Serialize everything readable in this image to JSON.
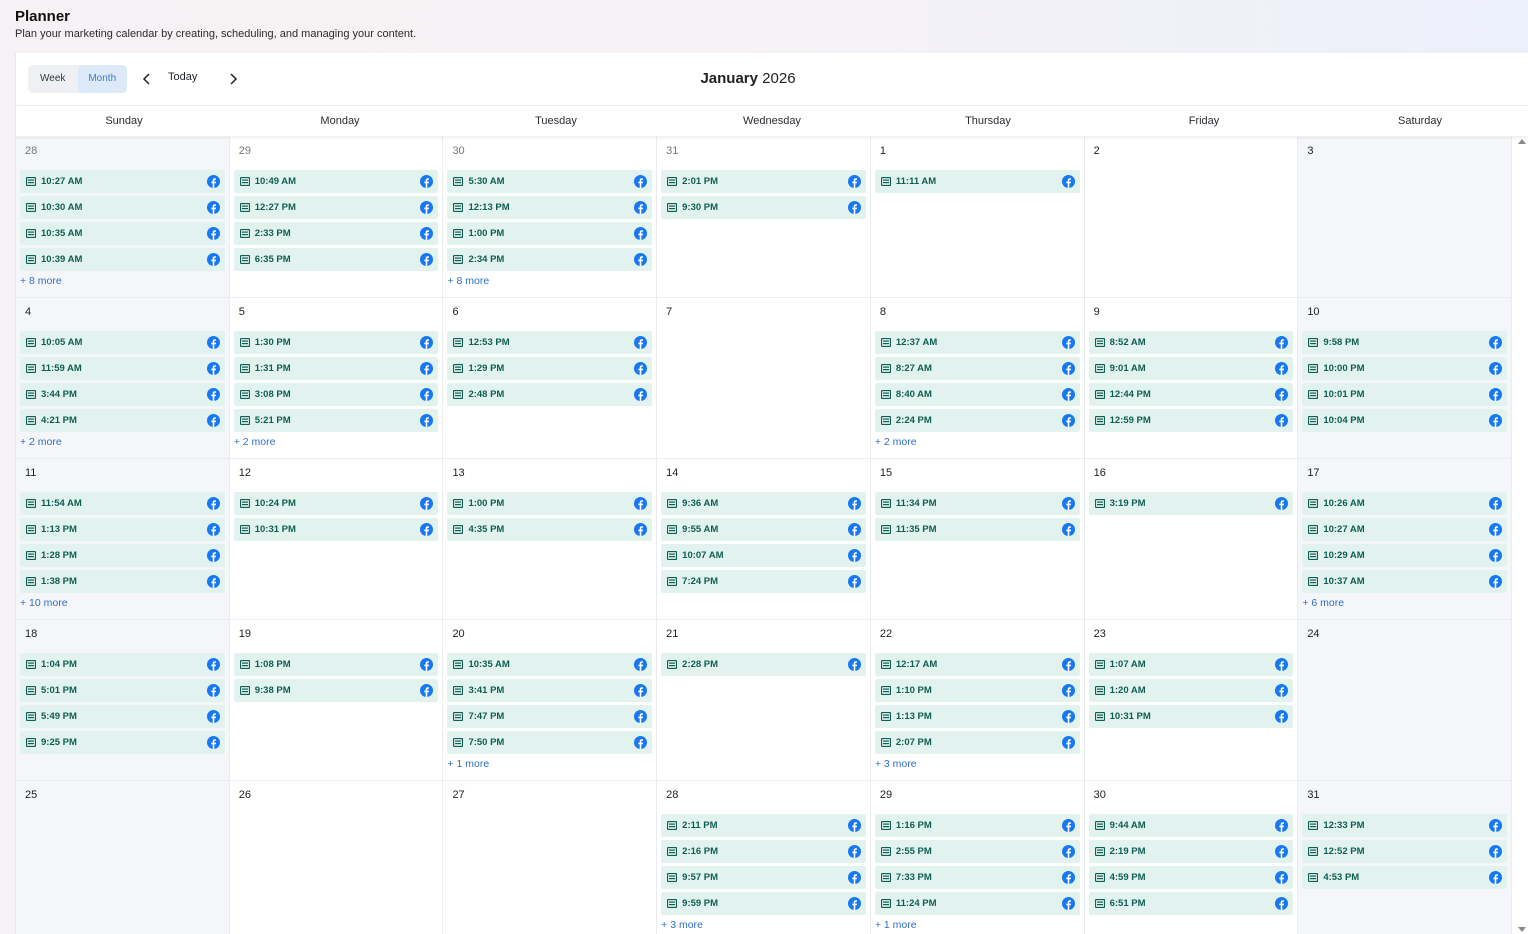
{
  "header": {
    "title": "Planner",
    "subtitle": "Plan your marketing calendar by creating, scheduling, and managing your content."
  },
  "toolbar": {
    "week_label": "Week",
    "month_label": "Month",
    "active_view": "Month",
    "today_label": "Today",
    "month_name": "January",
    "year": "2026"
  },
  "weekdays": [
    "Sunday",
    "Monday",
    "Tuesday",
    "Wednesday",
    "Thursday",
    "Friday",
    "Saturday"
  ],
  "colors": {
    "event_bg": "#e2f3ef",
    "event_text": "#0f5e52",
    "facebook_blue": "#1877f2",
    "more_link": "#2e6fc7",
    "active_toggle_bg": "#dce9f8"
  },
  "icons": {
    "post": "post-card-icon",
    "network": "facebook-icon",
    "prev": "chevron-left-icon",
    "next": "chevron-right-icon"
  },
  "weeks": [
    [
      {
        "day": "28",
        "muted": true,
        "events": [
          "10:27 AM",
          "10:30 AM",
          "10:35 AM",
          "10:39 AM"
        ],
        "more": "+ 8 more"
      },
      {
        "day": "29",
        "muted": true,
        "events": [
          "10:49 AM",
          "12:27 PM",
          "2:33 PM",
          "6:35 PM"
        ],
        "more": ""
      },
      {
        "day": "30",
        "muted": true,
        "events": [
          "5:30 AM",
          "12:13 PM",
          "1:00 PM",
          "2:34 PM"
        ],
        "more": "+ 8 more"
      },
      {
        "day": "31",
        "muted": true,
        "events": [
          "2:01 PM",
          "9:30 PM"
        ],
        "more": ""
      },
      {
        "day": "1",
        "muted": false,
        "events": [
          "11:11 AM"
        ],
        "more": ""
      },
      {
        "day": "2",
        "muted": false,
        "events": [],
        "more": ""
      },
      {
        "day": "3",
        "muted": false,
        "events": [],
        "more": ""
      }
    ],
    [
      {
        "day": "4",
        "muted": false,
        "events": [
          "10:05 AM",
          "11:59 AM",
          "3:44 PM",
          "4:21 PM"
        ],
        "more": "+ 2 more"
      },
      {
        "day": "5",
        "muted": false,
        "events": [
          "1:30 PM",
          "1:31 PM",
          "3:08 PM",
          "5:21 PM"
        ],
        "more": "+ 2 more"
      },
      {
        "day": "6",
        "muted": false,
        "events": [
          "12:53 PM",
          "1:29 PM",
          "2:48 PM"
        ],
        "more": ""
      },
      {
        "day": "7",
        "muted": false,
        "events": [],
        "more": ""
      },
      {
        "day": "8",
        "muted": false,
        "events": [
          "12:37 AM",
          "8:27 AM",
          "8:40 AM",
          "2:24 PM"
        ],
        "more": "+ 2 more"
      },
      {
        "day": "9",
        "muted": false,
        "events": [
          "8:52 AM",
          "9:01 AM",
          "12:44 PM",
          "12:59 PM"
        ],
        "more": ""
      },
      {
        "day": "10",
        "muted": false,
        "events": [
          "9:58 PM",
          "10:00 PM",
          "10:01 PM",
          "10:04 PM"
        ],
        "more": ""
      }
    ],
    [
      {
        "day": "11",
        "muted": false,
        "events": [
          "11:54 AM",
          "1:13 PM",
          "1:28 PM",
          "1:38 PM"
        ],
        "more": "+ 10 more"
      },
      {
        "day": "12",
        "muted": false,
        "events": [
          "10:24 PM",
          "10:31 PM"
        ],
        "more": ""
      },
      {
        "day": "13",
        "muted": false,
        "events": [
          "1:00 PM",
          "4:35 PM"
        ],
        "more": ""
      },
      {
        "day": "14",
        "muted": false,
        "events": [
          "9:36 AM",
          "9:55 AM",
          "10:07 AM",
          "7:24 PM"
        ],
        "more": ""
      },
      {
        "day": "15",
        "muted": false,
        "events": [
          "11:34 PM",
          "11:35 PM"
        ],
        "more": ""
      },
      {
        "day": "16",
        "muted": false,
        "events": [
          "3:19 PM"
        ],
        "more": ""
      },
      {
        "day": "17",
        "muted": false,
        "events": [
          "10:26 AM",
          "10:27 AM",
          "10:29 AM",
          "10:37 AM"
        ],
        "more": "+ 6 more"
      }
    ],
    [
      {
        "day": "18",
        "muted": false,
        "events": [
          "1:04 PM",
          "5:01 PM",
          "5:49 PM",
          "9:25 PM"
        ],
        "more": ""
      },
      {
        "day": "19",
        "muted": false,
        "events": [
          "1:08 PM",
          "9:38 PM"
        ],
        "more": ""
      },
      {
        "day": "20",
        "muted": false,
        "events": [
          "10:35 AM",
          "3:41 PM",
          "7:47 PM",
          "7:50 PM"
        ],
        "more": "+ 1 more"
      },
      {
        "day": "21",
        "muted": false,
        "events": [
          "2:28 PM"
        ],
        "more": ""
      },
      {
        "day": "22",
        "muted": false,
        "events": [
          "12:17 AM",
          "1:10 PM",
          "1:13 PM",
          "2:07 PM"
        ],
        "more": "+ 3 more"
      },
      {
        "day": "23",
        "muted": false,
        "events": [
          "1:07 AM",
          "1:20 AM",
          "10:31 PM"
        ],
        "more": ""
      },
      {
        "day": "24",
        "muted": false,
        "events": [],
        "more": ""
      }
    ],
    [
      {
        "day": "25",
        "muted": false,
        "events": [],
        "more": ""
      },
      {
        "day": "26",
        "muted": false,
        "events": [],
        "more": ""
      },
      {
        "day": "27",
        "muted": false,
        "events": [],
        "more": ""
      },
      {
        "day": "28",
        "muted": false,
        "events": [
          "2:11 PM",
          "2:16 PM",
          "9:57 PM",
          "9:59 PM"
        ],
        "more": "+ 3 more"
      },
      {
        "day": "29",
        "muted": false,
        "events": [
          "1:16 PM",
          "2:55 PM",
          "7:33 PM",
          "11:24 PM"
        ],
        "more": "+ 1 more"
      },
      {
        "day": "30",
        "muted": false,
        "events": [
          "9:44 AM",
          "2:19 PM",
          "4:59 PM",
          "6:51 PM"
        ],
        "more": ""
      },
      {
        "day": "31",
        "muted": false,
        "events": [
          "12:33 PM",
          "12:52 PM",
          "4:53 PM"
        ],
        "more": ""
      }
    ]
  ]
}
